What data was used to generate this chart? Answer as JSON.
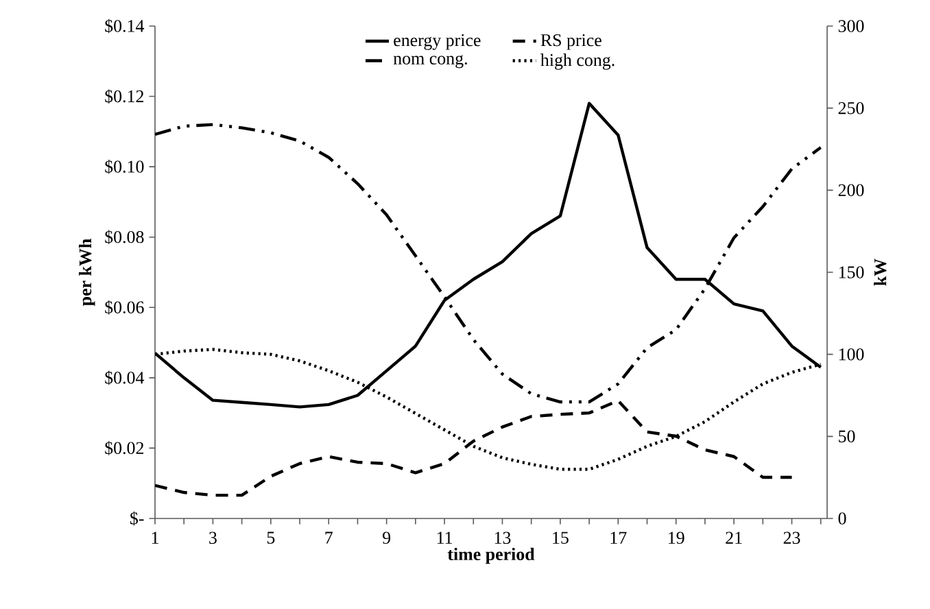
{
  "chart_data": {
    "type": "line",
    "categories": [
      "1",
      null,
      "3",
      null,
      "5",
      null,
      "7",
      null,
      "9",
      null,
      "11",
      null,
      "13",
      null,
      "15",
      null,
      "17",
      null,
      "19",
      null,
      "21",
      null,
      "23",
      null
    ],
    "series": [
      {
        "name": "energy price",
        "color": "#000000",
        "line_style": "solid",
        "values": [
          0.047,
          0.04,
          0.0336,
          0.033,
          0.0324,
          0.0317,
          0.0324,
          0.035,
          0.042,
          0.049,
          0.062,
          0.068,
          0.073,
          0.081,
          0.086,
          0.118,
          0.109,
          0.077,
          0.068,
          0.068,
          0.061,
          0.059,
          0.049,
          0.043
        ]
      },
      {
        "name": "RS price",
        "color": "#000000",
        "line_style": "dashed",
        "values": [
          0.0094,
          0.0074,
          0.0066,
          0.0066,
          0.012,
          0.0156,
          0.0176,
          0.016,
          0.0156,
          0.013,
          0.0156,
          0.022,
          0.026,
          0.029,
          0.0296,
          0.03,
          0.0335,
          0.0246,
          0.0234,
          0.0195,
          0.0176,
          0.0117,
          0.0117,
          null
        ]
      },
      {
        "name": "nom cong.",
        "color": "#000000",
        "line_style": "dashdot",
        "axis": "y2",
        "values": [
          234,
          239,
          240,
          238,
          235,
          230,
          220,
          204,
          185,
          160,
          135,
          109,
          88,
          76,
          71,
          71,
          82,
          104,
          115,
          140,
          171,
          190,
          213,
          226
        ]
      },
      {
        "name": "high cong.",
        "color": "#000000",
        "line_style": "dotted",
        "axis": "y2",
        "values": [
          100,
          102,
          103,
          101,
          100,
          96,
          90,
          83,
          74,
          64,
          54,
          44,
          37,
          33,
          30,
          30,
          36,
          44,
          50,
          59,
          71,
          82,
          89,
          94
        ]
      }
    ],
    "xlabel": "time period",
    "ylabel": "per kWh",
    "y2label": "kW",
    "ylim": [
      0,
      0.14
    ],
    "yticks": [
      {
        "value": 0,
        "label": "$-"
      },
      {
        "value": 0.02,
        "label": "$0.02"
      },
      {
        "value": 0.04,
        "label": "$0.04"
      },
      {
        "value": 0.06,
        "label": "$0.06"
      },
      {
        "value": 0.08,
        "label": "$0.08"
      },
      {
        "value": 0.1,
        "label": "$0.10"
      },
      {
        "value": 0.12,
        "label": "$0.12"
      },
      {
        "value": 0.14,
        "label": "$0.14"
      }
    ],
    "y2lim": [
      0,
      300
    ],
    "y2ticks": [
      0,
      50,
      100,
      150,
      200,
      250,
      300
    ],
    "legend": "top"
  }
}
